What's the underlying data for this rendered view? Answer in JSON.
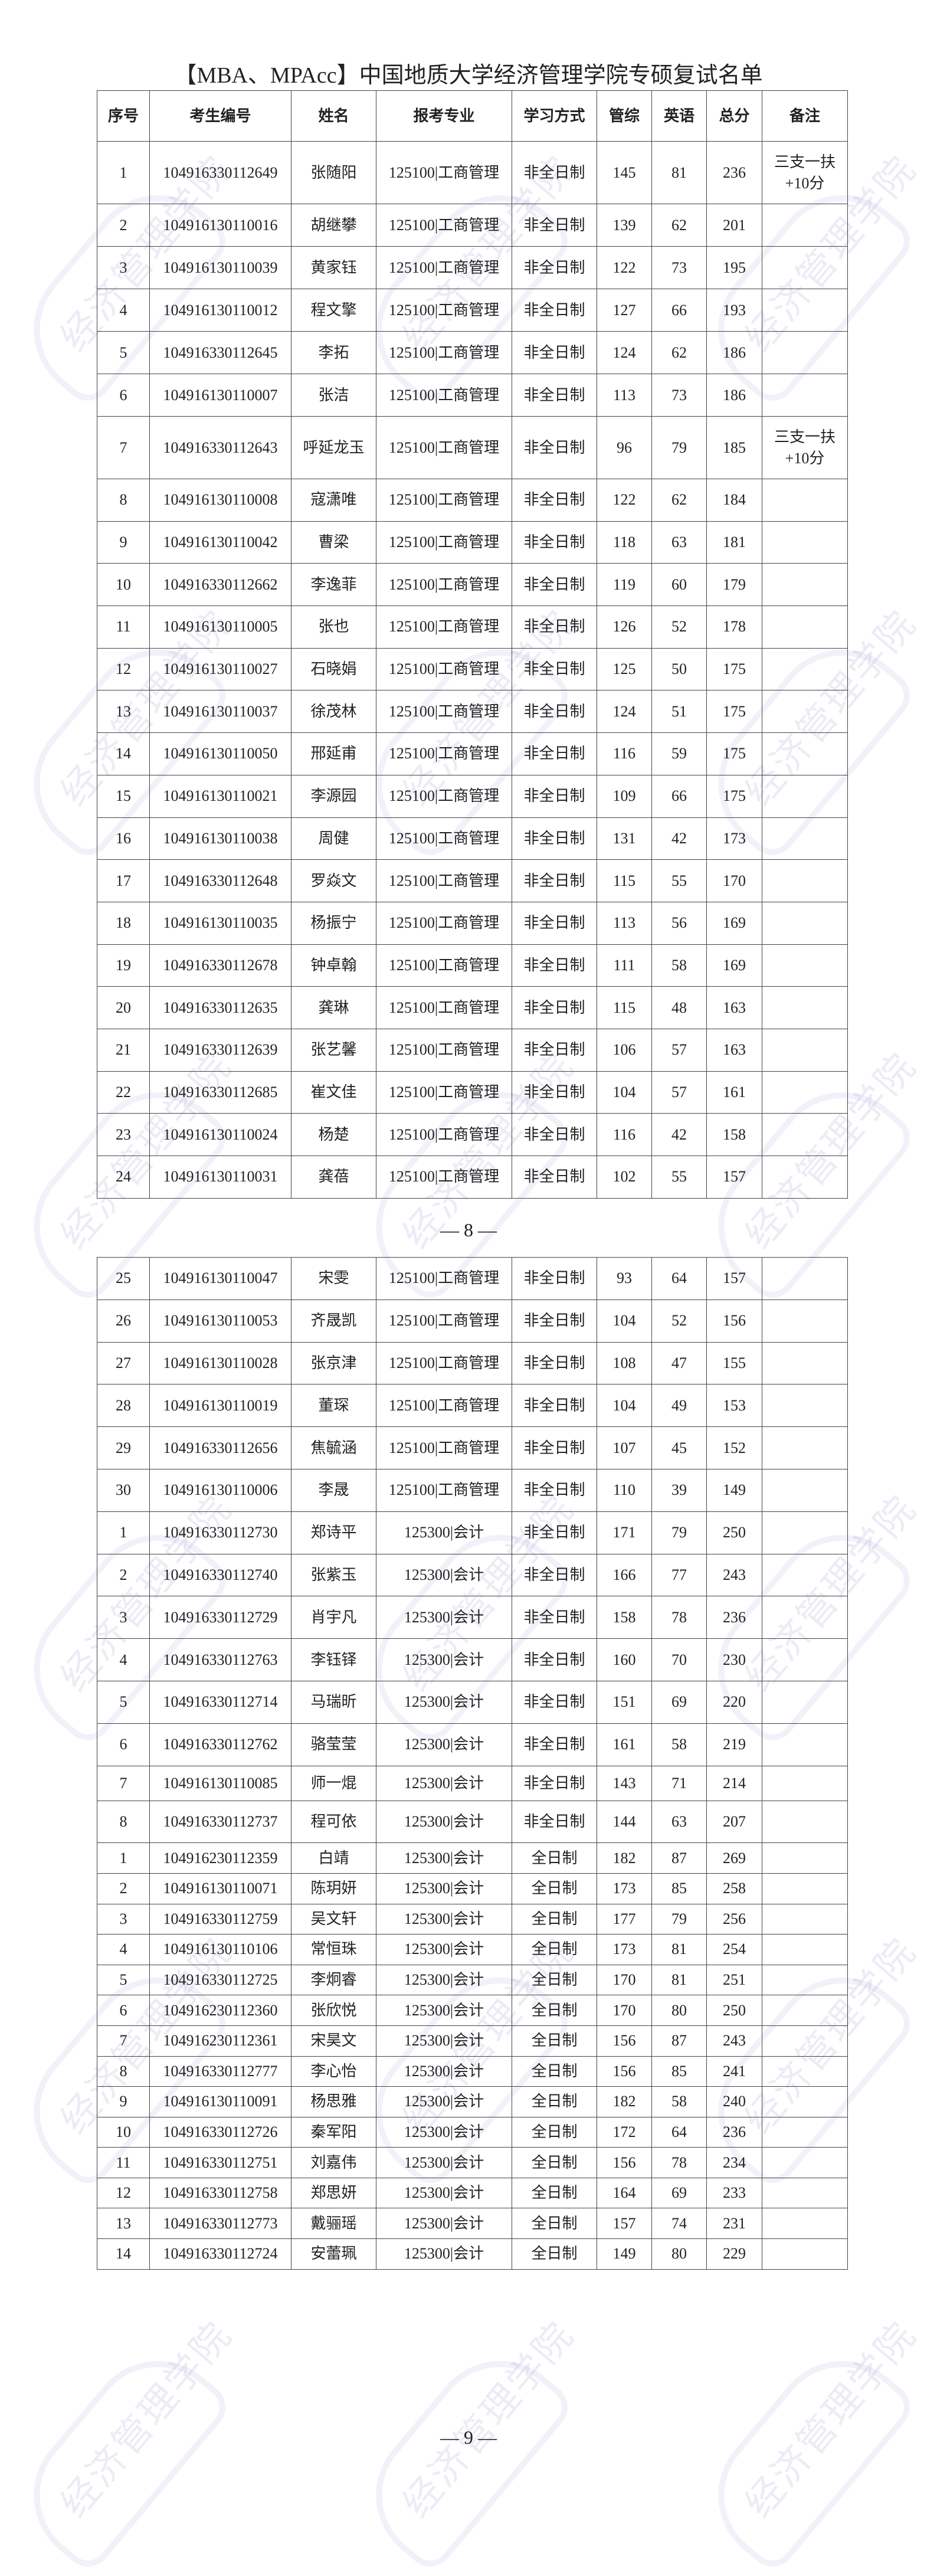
{
  "title": "【MBA、MPAcc】中国地质大学经济管理学院专硕复试名单",
  "watermark": "经济管理学院",
  "columns": [
    "序号",
    "考生编号",
    "姓名",
    "报考专业",
    "学习方式",
    "管综",
    "英语",
    "总分",
    "备注"
  ],
  "page_numbers": [
    "— 8 —",
    "— 9 —"
  ],
  "table1_rows": [
    [
      "1",
      "104916330112649",
      "张随阳",
      "125100|工商管理",
      "非全日制",
      "145",
      "81",
      "236",
      "三支一扶\n+10分"
    ],
    [
      "2",
      "104916130110016",
      "胡继攀",
      "125100|工商管理",
      "非全日制",
      "139",
      "62",
      "201",
      ""
    ],
    [
      "3",
      "104916130110039",
      "黄家钰",
      "125100|工商管理",
      "非全日制",
      "122",
      "73",
      "195",
      ""
    ],
    [
      "4",
      "104916130110012",
      "程文擎",
      "125100|工商管理",
      "非全日制",
      "127",
      "66",
      "193",
      ""
    ],
    [
      "5",
      "104916330112645",
      "李拓",
      "125100|工商管理",
      "非全日制",
      "124",
      "62",
      "186",
      ""
    ],
    [
      "6",
      "104916130110007",
      "张洁",
      "125100|工商管理",
      "非全日制",
      "113",
      "73",
      "186",
      ""
    ],
    [
      "7",
      "104916330112643",
      "呼延龙玉",
      "125100|工商管理",
      "非全日制",
      "96",
      "79",
      "185",
      "三支一扶\n+10分"
    ],
    [
      "8",
      "104916130110008",
      "寇潇唯",
      "125100|工商管理",
      "非全日制",
      "122",
      "62",
      "184",
      ""
    ],
    [
      "9",
      "104916130110042",
      "曹梁",
      "125100|工商管理",
      "非全日制",
      "118",
      "63",
      "181",
      ""
    ],
    [
      "10",
      "104916330112662",
      "李逸菲",
      "125100|工商管理",
      "非全日制",
      "119",
      "60",
      "179",
      ""
    ],
    [
      "11",
      "104916130110005",
      "张也",
      "125100|工商管理",
      "非全日制",
      "126",
      "52",
      "178",
      ""
    ],
    [
      "12",
      "104916130110027",
      "石晓娟",
      "125100|工商管理",
      "非全日制",
      "125",
      "50",
      "175",
      ""
    ],
    [
      "13",
      "104916130110037",
      "徐茂林",
      "125100|工商管理",
      "非全日制",
      "124",
      "51",
      "175",
      ""
    ],
    [
      "14",
      "104916130110050",
      "邢延甫",
      "125100|工商管理",
      "非全日制",
      "116",
      "59",
      "175",
      ""
    ],
    [
      "15",
      "104916130110021",
      "李源园",
      "125100|工商管理",
      "非全日制",
      "109",
      "66",
      "175",
      ""
    ],
    [
      "16",
      "104916130110038",
      "周健",
      "125100|工商管理",
      "非全日制",
      "131",
      "42",
      "173",
      ""
    ],
    [
      "17",
      "104916330112648",
      "罗焱文",
      "125100|工商管理",
      "非全日制",
      "115",
      "55",
      "170",
      ""
    ],
    [
      "18",
      "104916130110035",
      "杨振宁",
      "125100|工商管理",
      "非全日制",
      "113",
      "56",
      "169",
      ""
    ],
    [
      "19",
      "104916330112678",
      "钟卓翰",
      "125100|工商管理",
      "非全日制",
      "111",
      "58",
      "169",
      ""
    ],
    [
      "20",
      "104916330112635",
      "龚琳",
      "125100|工商管理",
      "非全日制",
      "115",
      "48",
      "163",
      ""
    ],
    [
      "21",
      "104916330112639",
      "张艺馨",
      "125100|工商管理",
      "非全日制",
      "106",
      "57",
      "163",
      ""
    ],
    [
      "22",
      "104916330112685",
      "崔文佳",
      "125100|工商管理",
      "非全日制",
      "104",
      "57",
      "161",
      ""
    ],
    [
      "23",
      "104916130110024",
      "杨楚",
      "125100|工商管理",
      "非全日制",
      "116",
      "42",
      "158",
      ""
    ],
    [
      "24",
      "104916130110031",
      "龚蓓",
      "125100|工商管理",
      "非全日制",
      "102",
      "55",
      "157",
      ""
    ]
  ],
  "table2_rows": [
    [
      "25",
      "104916130110047",
      "宋雯",
      "125100|工商管理",
      "非全日制",
      "93",
      "64",
      "157",
      ""
    ],
    [
      "26",
      "104916130110053",
      "齐晟凯",
      "125100|工商管理",
      "非全日制",
      "104",
      "52",
      "156",
      ""
    ],
    [
      "27",
      "104916130110028",
      "张京津",
      "125100|工商管理",
      "非全日制",
      "108",
      "47",
      "155",
      ""
    ],
    [
      "28",
      "104916130110019",
      "董琛",
      "125100|工商管理",
      "非全日制",
      "104",
      "49",
      "153",
      ""
    ],
    [
      "29",
      "104916330112656",
      "焦毓涵",
      "125100|工商管理",
      "非全日制",
      "107",
      "45",
      "152",
      ""
    ],
    [
      "30",
      "104916130110006",
      "李晟",
      "125100|工商管理",
      "非全日制",
      "110",
      "39",
      "149",
      ""
    ],
    [
      "1",
      "104916330112730",
      "郑诗平",
      "125300|会计",
      "非全日制",
      "171",
      "79",
      "250",
      ""
    ],
    [
      "2",
      "104916330112740",
      "张紫玉",
      "125300|会计",
      "非全日制",
      "166",
      "77",
      "243",
      ""
    ],
    [
      "3",
      "104916330112729",
      "肖宇凡",
      "125300|会计",
      "非全日制",
      "158",
      "78",
      "236",
      ""
    ],
    [
      "4",
      "104916330112763",
      "李钰铎",
      "125300|会计",
      "非全日制",
      "160",
      "70",
      "230",
      ""
    ],
    [
      "5",
      "104916330112714",
      "马瑞昕",
      "125300|会计",
      "非全日制",
      "151",
      "69",
      "220",
      ""
    ],
    [
      "6",
      "104916330112762",
      "骆莹莹",
      "125300|会计",
      "非全日制",
      "161",
      "58",
      "219",
      ""
    ],
    [
      "7",
      "104916130110085",
      "师一焜",
      "125300|会计",
      "非全日制",
      "143",
      "71",
      "214",
      ""
    ],
    [
      "8",
      "104916330112737",
      "程可依",
      "125300|会计",
      "非全日制",
      "144",
      "63",
      "207",
      ""
    ],
    [
      "1",
      "104916230112359",
      "白靖",
      "125300|会计",
      "全日制",
      "182",
      "87",
      "269",
      ""
    ],
    [
      "2",
      "104916130110071",
      "陈玥妍",
      "125300|会计",
      "全日制",
      "173",
      "85",
      "258",
      ""
    ],
    [
      "3",
      "104916330112759",
      "吴文轩",
      "125300|会计",
      "全日制",
      "177",
      "79",
      "256",
      ""
    ],
    [
      "4",
      "104916130110106",
      "常恒珠",
      "125300|会计",
      "全日制",
      "173",
      "81",
      "254",
      ""
    ],
    [
      "5",
      "104916330112725",
      "李炯睿",
      "125300|会计",
      "全日制",
      "170",
      "81",
      "251",
      ""
    ],
    [
      "6",
      "104916230112360",
      "张欣悦",
      "125300|会计",
      "全日制",
      "170",
      "80",
      "250",
      ""
    ],
    [
      "7",
      "104916230112361",
      "宋昊文",
      "125300|会计",
      "全日制",
      "156",
      "87",
      "243",
      ""
    ],
    [
      "8",
      "104916330112777",
      "李心怡",
      "125300|会计",
      "全日制",
      "156",
      "85",
      "241",
      ""
    ],
    [
      "9",
      "104916130110091",
      "杨思雅",
      "125300|会计",
      "全日制",
      "182",
      "58",
      "240",
      ""
    ],
    [
      "10",
      "104916330112726",
      "秦军阳",
      "125300|会计",
      "全日制",
      "172",
      "64",
      "236",
      ""
    ],
    [
      "11",
      "104916330112751",
      "刘嘉伟",
      "125300|会计",
      "全日制",
      "156",
      "78",
      "234",
      ""
    ],
    [
      "12",
      "104916330112758",
      "郑思妍",
      "125300|会计",
      "全日制",
      "164",
      "69",
      "233",
      ""
    ],
    [
      "13",
      "104916330112773",
      "戴骊瑶",
      "125300|会计",
      "全日制",
      "157",
      "74",
      "231",
      ""
    ],
    [
      "14",
      "104916330112724",
      "安蕾珮",
      "125300|会计",
      "全日制",
      "149",
      "80",
      "229",
      ""
    ]
  ]
}
